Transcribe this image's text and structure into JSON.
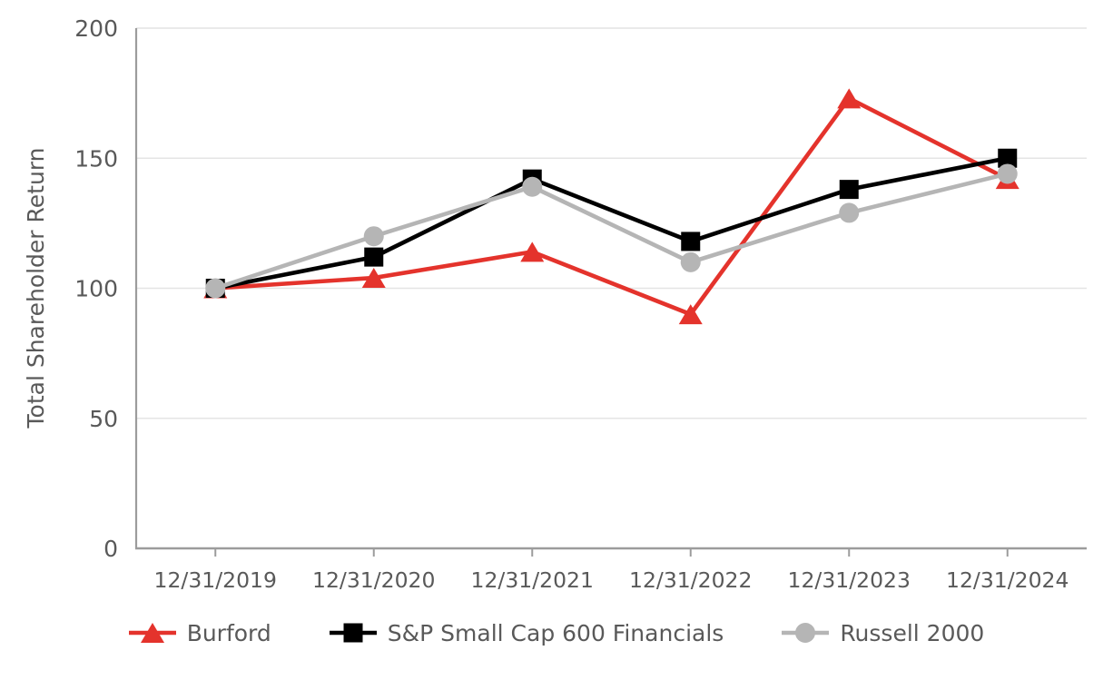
{
  "chart_data": {
    "type": "line",
    "title": "",
    "ylabel": "Total Shareholder Return",
    "xlabel": "",
    "categories": [
      "12/31/2019",
      "12/31/2020",
      "12/31/2021",
      "12/31/2022",
      "12/31/2023",
      "12/31/2024"
    ],
    "series": [
      {
        "name": "Burford",
        "color": "#E4332C",
        "marker": "triangle",
        "values": [
          100,
          104,
          114,
          90,
          173,
          142
        ]
      },
      {
        "name": "S&P Small Cap 600 Financials",
        "color": "#000000",
        "marker": "square",
        "values": [
          100,
          112,
          142,
          118,
          138,
          150
        ]
      },
      {
        "name": "Russell 2000",
        "color": "#B5B5B5",
        "marker": "circle",
        "values": [
          100,
          120,
          139,
          110,
          129,
          144
        ]
      }
    ],
    "ylim": [
      0,
      200
    ],
    "yticks": [
      0,
      50,
      100,
      150,
      200
    ],
    "grid": "horizontal",
    "legend_position": "bottom",
    "colors": {
      "axis_text": "#595959",
      "gridline": "#E4E4E4",
      "axis_line": "#9C9C9C",
      "background": "#FFFFFF"
    }
  }
}
